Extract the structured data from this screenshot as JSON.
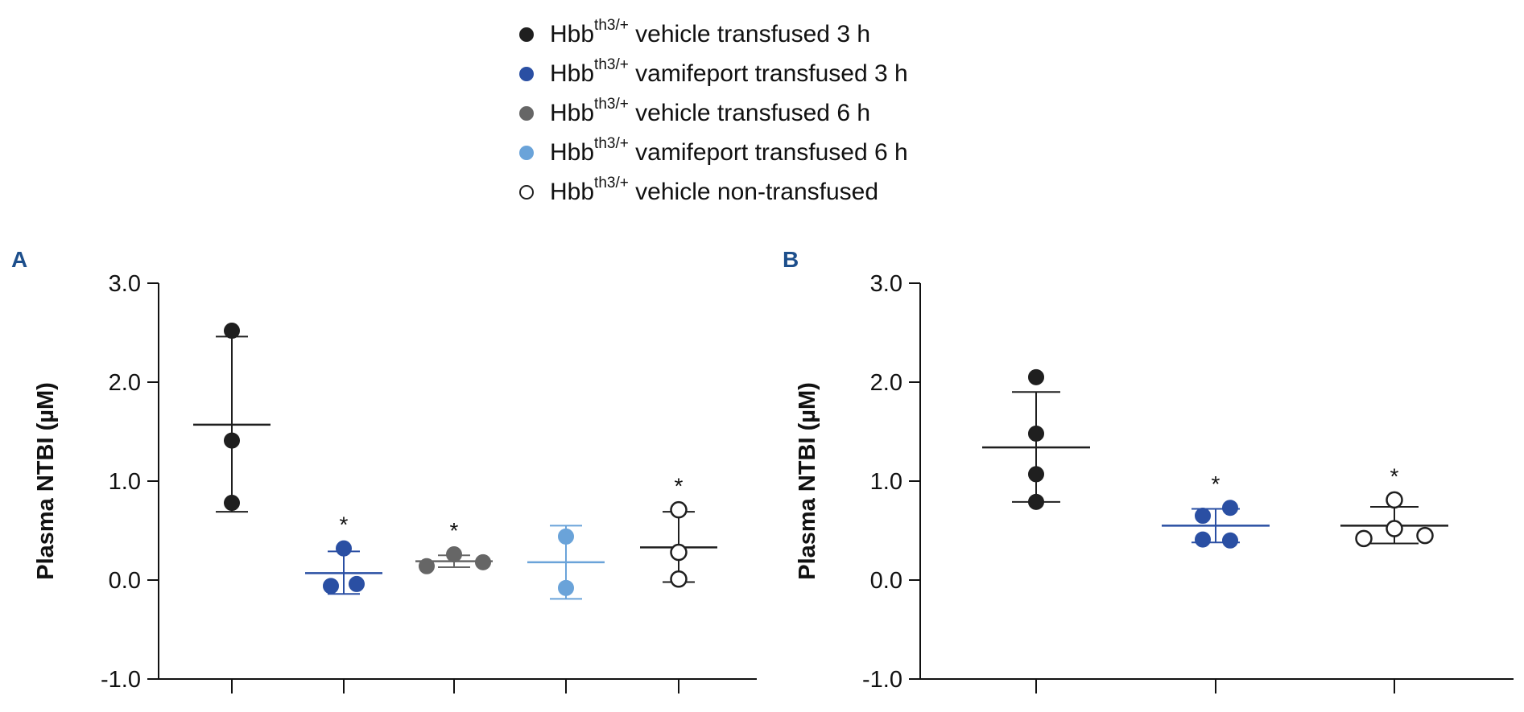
{
  "legend": [
    {
      "base": "Hbb",
      "sup": "th3/+",
      "text": " vehicle transfused 3 h",
      "color": "#1f1f1f",
      "filled": true
    },
    {
      "base": "Hbb",
      "sup": "th3/+",
      "text": " vamifeport transfused 3 h",
      "color": "#2a4fa3",
      "filled": true
    },
    {
      "base": "Hbb",
      "sup": "th3/+",
      "text": " vehicle transfused 6 h",
      "color": "#666666",
      "filled": true
    },
    {
      "base": "Hbb",
      "sup": "th3/+",
      "text": " vamifeport transfused 6 h",
      "color": "#6aa3d9",
      "filled": true
    },
    {
      "base": "Hbb",
      "sup": "th3/+",
      "text": " vehicle non-transfused",
      "color": "#1f1f1f",
      "filled": false
    }
  ],
  "chart_data": [
    {
      "type": "scatter",
      "panel_label": "A",
      "title": "",
      "xlabel": "",
      "ylabel": "Plasma NTBI (µM)",
      "ylim": [
        -1.0,
        3.0
      ],
      "yticks": [
        "-1.0",
        "0.0",
        "1.0",
        "2.0",
        "3.0"
      ],
      "significance_marker": "*",
      "groups": [
        {
          "name": "Hbbth3/+ vehicle transfused 3 h",
          "color": "#1f1f1f",
          "filled": true,
          "points": [
            2.52,
            1.41,
            0.78
          ],
          "mean": 1.57,
          "sd_upper": 2.46,
          "sd_lower": 0.69,
          "significant": false
        },
        {
          "name": "Hbbth3/+ vamifeport transfused 3 h",
          "color": "#2a4fa3",
          "filled": true,
          "points": [
            0.32,
            -0.06,
            -0.04
          ],
          "mean": 0.07,
          "sd_upper": 0.29,
          "sd_lower": -0.14,
          "significant": true
        },
        {
          "name": "Hbbth3/+ vehicle transfused 6 h",
          "color": "#666666",
          "filled": true,
          "points": [
            0.26,
            0.14,
            0.18
          ],
          "mean": 0.19,
          "sd_upper": 0.25,
          "sd_lower": 0.13,
          "significant": true
        },
        {
          "name": "Hbbth3/+ vamifeport transfused 6 h",
          "color": "#6aa3d9",
          "filled": true,
          "points": [
            0.44,
            -0.08
          ],
          "mean": 0.18,
          "sd_upper": 0.55,
          "sd_lower": -0.19,
          "significant": false
        },
        {
          "name": "Hbbth3/+ vehicle non-transfused",
          "color": "#1f1f1f",
          "filled": false,
          "points": [
            0.71,
            0.28,
            0.01
          ],
          "mean": 0.33,
          "sd_upper": 0.69,
          "sd_lower": -0.02,
          "significant": true
        }
      ]
    },
    {
      "type": "scatter",
      "panel_label": "B",
      "title": "",
      "xlabel": "",
      "ylabel": "Plasma NTBI (µM)",
      "ylim": [
        -1.0,
        3.0
      ],
      "yticks": [
        "-1.0",
        "0.0",
        "1.0",
        "2.0",
        "3.0"
      ],
      "significance_marker": "*",
      "groups": [
        {
          "name": "Hbbth3/+ vehicle transfused 3 h",
          "color": "#1f1f1f",
          "filled": true,
          "points": [
            2.05,
            1.48,
            1.07,
            0.79
          ],
          "mean": 1.34,
          "sd_upper": 1.9,
          "sd_lower": 0.79,
          "significant": false
        },
        {
          "name": "Hbbth3/+ vamifeport transfused 3 h",
          "color": "#2a4fa3",
          "filled": true,
          "points": [
            0.65,
            0.73,
            0.41,
            0.4
          ],
          "mean": 0.55,
          "sd_upper": 0.72,
          "sd_lower": 0.38,
          "significant": true
        },
        {
          "name": "Hbbth3/+ vehicle non-transfused",
          "color": "#1f1f1f",
          "filled": false,
          "points": [
            0.81,
            0.52,
            0.42,
            0.45
          ],
          "mean": 0.55,
          "sd_upper": 0.74,
          "sd_lower": 0.37,
          "significant": true
        }
      ]
    }
  ]
}
